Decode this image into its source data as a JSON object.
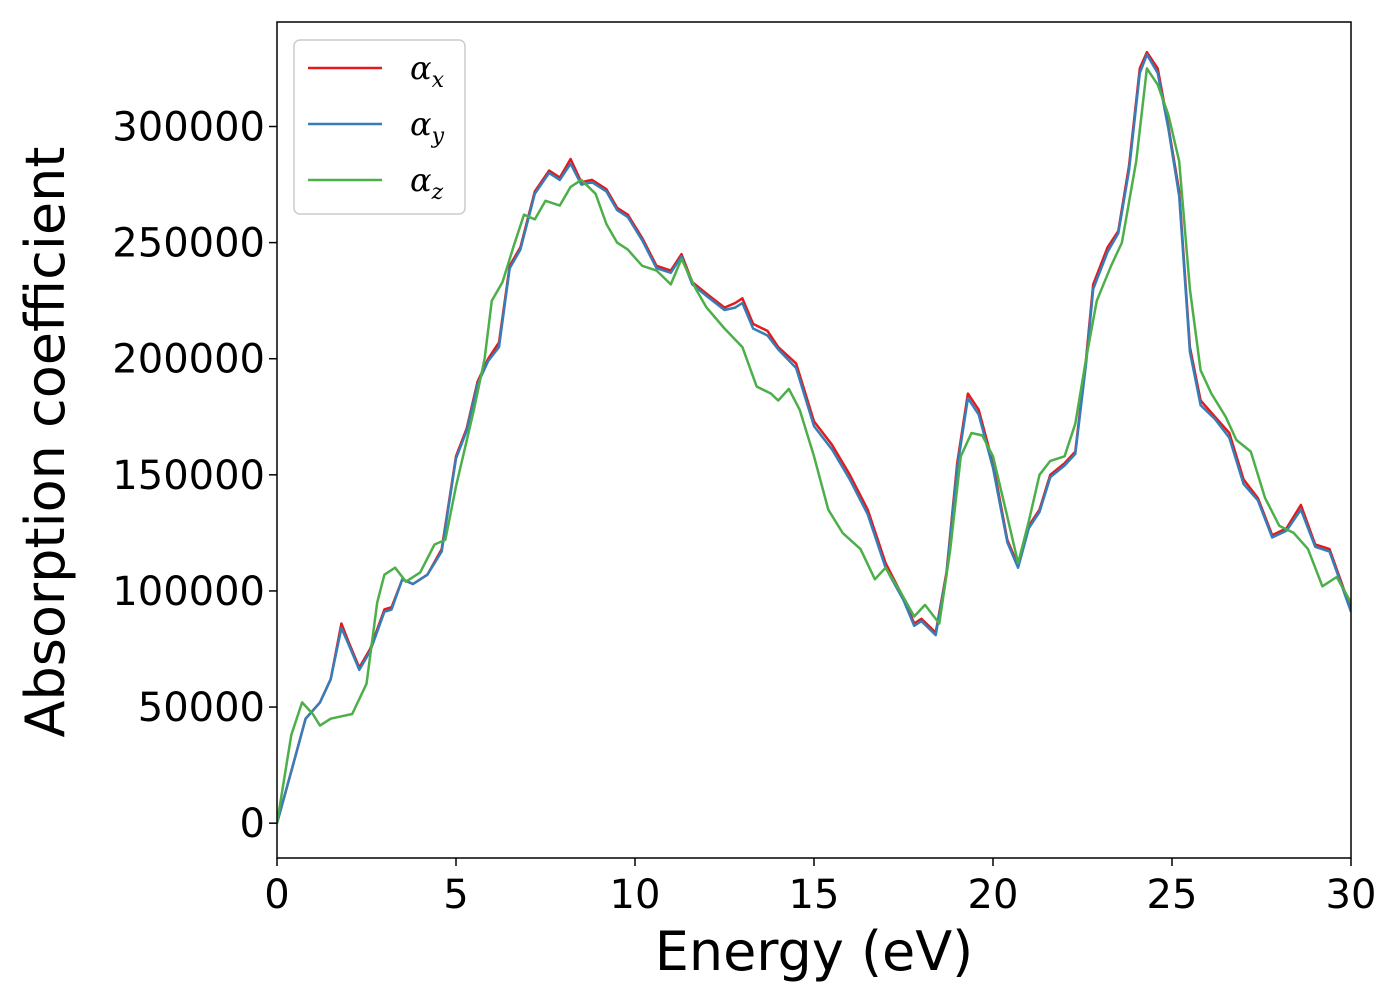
{
  "chart_data": {
    "type": "line",
    "xlabel": "Energy (eV)",
    "ylabel": "Absorption coefficient",
    "xlim": [
      0,
      30
    ],
    "ylim": [
      -15000,
      345000
    ],
    "xticks": [
      0,
      5,
      10,
      15,
      20,
      25,
      30
    ],
    "yticks": [
      0,
      50000,
      100000,
      150000,
      200000,
      250000,
      300000
    ],
    "grid": false,
    "legend_position": "top-left",
    "series": [
      {
        "name": "α",
        "sub": "x",
        "color": "#e41a1c",
        "points": [
          [
            0,
            0
          ],
          [
            0.5,
            28000
          ],
          [
            0.8,
            45000
          ],
          [
            1.2,
            52000
          ],
          [
            1.5,
            62000
          ],
          [
            1.8,
            86000
          ],
          [
            2.0,
            78000
          ],
          [
            2.3,
            67000
          ],
          [
            2.6,
            75000
          ],
          [
            3.0,
            92000
          ],
          [
            3.2,
            93000
          ],
          [
            3.5,
            105000
          ],
          [
            3.8,
            103000
          ],
          [
            4.2,
            107000
          ],
          [
            4.6,
            118000
          ],
          [
            5.0,
            158000
          ],
          [
            5.3,
            170000
          ],
          [
            5.6,
            190000
          ],
          [
            5.9,
            200000
          ],
          [
            6.2,
            207000
          ],
          [
            6.5,
            240000
          ],
          [
            6.8,
            248000
          ],
          [
            7.2,
            272000
          ],
          [
            7.6,
            281000
          ],
          [
            7.9,
            278000
          ],
          [
            8.2,
            286000
          ],
          [
            8.5,
            276000
          ],
          [
            8.8,
            277000
          ],
          [
            9.2,
            273000
          ],
          [
            9.5,
            265000
          ],
          [
            9.8,
            262000
          ],
          [
            10.2,
            252000
          ],
          [
            10.6,
            240000
          ],
          [
            11.0,
            238000
          ],
          [
            11.3,
            245000
          ],
          [
            11.6,
            233000
          ],
          [
            12.0,
            228000
          ],
          [
            12.5,
            222000
          ],
          [
            12.8,
            224000
          ],
          [
            13.0,
            226000
          ],
          [
            13.3,
            215000
          ],
          [
            13.7,
            212000
          ],
          [
            14.0,
            205000
          ],
          [
            14.5,
            198000
          ],
          [
            15.0,
            173000
          ],
          [
            15.5,
            163000
          ],
          [
            16.0,
            150000
          ],
          [
            16.5,
            135000
          ],
          [
            17.0,
            112000
          ],
          [
            17.5,
            97000
          ],
          [
            17.8,
            86000
          ],
          [
            18.0,
            88000
          ],
          [
            18.4,
            82000
          ],
          [
            18.7,
            108000
          ],
          [
            19.0,
            155000
          ],
          [
            19.3,
            185000
          ],
          [
            19.6,
            178000
          ],
          [
            20.0,
            155000
          ],
          [
            20.4,
            122000
          ],
          [
            20.7,
            111000
          ],
          [
            21.0,
            128000
          ],
          [
            21.3,
            135000
          ],
          [
            21.6,
            150000
          ],
          [
            22.0,
            155000
          ],
          [
            22.3,
            160000
          ],
          [
            22.6,
            200000
          ],
          [
            22.8,
            232000
          ],
          [
            23.2,
            248000
          ],
          [
            23.5,
            255000
          ],
          [
            23.8,
            283000
          ],
          [
            24.1,
            325000
          ],
          [
            24.3,
            332000
          ],
          [
            24.6,
            325000
          ],
          [
            24.9,
            300000
          ],
          [
            25.2,
            272000
          ],
          [
            25.5,
            205000
          ],
          [
            25.8,
            182000
          ],
          [
            26.2,
            175000
          ],
          [
            26.6,
            168000
          ],
          [
            27.0,
            148000
          ],
          [
            27.4,
            140000
          ],
          [
            27.8,
            124000
          ],
          [
            28.2,
            127000
          ],
          [
            28.6,
            137000
          ],
          [
            29.0,
            120000
          ],
          [
            29.4,
            118000
          ],
          [
            29.7,
            105000
          ],
          [
            30.0,
            92000
          ]
        ]
      },
      {
        "name": "α",
        "sub": "y",
        "color": "#377eb8",
        "points": [
          [
            0,
            0
          ],
          [
            0.5,
            28000
          ],
          [
            0.8,
            45000
          ],
          [
            1.2,
            52000
          ],
          [
            1.5,
            62000
          ],
          [
            1.8,
            84000
          ],
          [
            2.0,
            77000
          ],
          [
            2.3,
            66000
          ],
          [
            2.6,
            74000
          ],
          [
            3.0,
            91000
          ],
          [
            3.2,
            92000
          ],
          [
            3.5,
            105000
          ],
          [
            3.8,
            103000
          ],
          [
            4.2,
            107000
          ],
          [
            4.6,
            117000
          ],
          [
            5.0,
            157000
          ],
          [
            5.3,
            169000
          ],
          [
            5.6,
            189000
          ],
          [
            5.9,
            199000
          ],
          [
            6.2,
            205000
          ],
          [
            6.5,
            239000
          ],
          [
            6.8,
            247000
          ],
          [
            7.2,
            271000
          ],
          [
            7.6,
            280000
          ],
          [
            7.9,
            277000
          ],
          [
            8.2,
            284000
          ],
          [
            8.5,
            275000
          ],
          [
            8.8,
            276000
          ],
          [
            9.2,
            272000
          ],
          [
            9.5,
            264000
          ],
          [
            9.8,
            261000
          ],
          [
            10.2,
            251000
          ],
          [
            10.6,
            239000
          ],
          [
            11.0,
            237000
          ],
          [
            11.3,
            244000
          ],
          [
            11.6,
            232000
          ],
          [
            12.0,
            227000
          ],
          [
            12.5,
            221000
          ],
          [
            12.8,
            222000
          ],
          [
            13.0,
            224000
          ],
          [
            13.3,
            213000
          ],
          [
            13.7,
            210000
          ],
          [
            14.0,
            204000
          ],
          [
            14.5,
            196000
          ],
          [
            15.0,
            171000
          ],
          [
            15.5,
            161000
          ],
          [
            16.0,
            148000
          ],
          [
            16.5,
            133000
          ],
          [
            17.0,
            110000
          ],
          [
            17.5,
            96000
          ],
          [
            17.8,
            85000
          ],
          [
            18.0,
            87000
          ],
          [
            18.4,
            81000
          ],
          [
            18.7,
            107000
          ],
          [
            19.0,
            153000
          ],
          [
            19.3,
            183000
          ],
          [
            19.6,
            176000
          ],
          [
            20.0,
            153000
          ],
          [
            20.4,
            121000
          ],
          [
            20.7,
            110000
          ],
          [
            21.0,
            127000
          ],
          [
            21.3,
            134000
          ],
          [
            21.6,
            149000
          ],
          [
            22.0,
            154000
          ],
          [
            22.3,
            159000
          ],
          [
            22.6,
            198000
          ],
          [
            22.8,
            230000
          ],
          [
            23.2,
            246000
          ],
          [
            23.5,
            254000
          ],
          [
            23.8,
            281000
          ],
          [
            24.1,
            323000
          ],
          [
            24.3,
            331000
          ],
          [
            24.6,
            323000
          ],
          [
            24.9,
            299000
          ],
          [
            25.2,
            270000
          ],
          [
            25.5,
            203000
          ],
          [
            25.8,
            180000
          ],
          [
            26.2,
            174000
          ],
          [
            26.6,
            166000
          ],
          [
            27.0,
            146000
          ],
          [
            27.4,
            139000
          ],
          [
            27.8,
            123000
          ],
          [
            28.2,
            126000
          ],
          [
            28.6,
            135000
          ],
          [
            29.0,
            119000
          ],
          [
            29.4,
            117000
          ],
          [
            29.7,
            104000
          ],
          [
            30.0,
            91000
          ]
        ]
      },
      {
        "name": "α",
        "sub": "z",
        "color": "#4daf4a",
        "points": [
          [
            0,
            0
          ],
          [
            0.4,
            38000
          ],
          [
            0.7,
            52000
          ],
          [
            1.0,
            47000
          ],
          [
            1.2,
            42000
          ],
          [
            1.5,
            45000
          ],
          [
            1.8,
            46000
          ],
          [
            2.1,
            47000
          ],
          [
            2.5,
            60000
          ],
          [
            2.8,
            95000
          ],
          [
            3.0,
            107000
          ],
          [
            3.3,
            110000
          ],
          [
            3.6,
            104000
          ],
          [
            4.0,
            108000
          ],
          [
            4.4,
            120000
          ],
          [
            4.7,
            122000
          ],
          [
            5.0,
            145000
          ],
          [
            5.5,
            178000
          ],
          [
            5.8,
            200000
          ],
          [
            6.0,
            225000
          ],
          [
            6.3,
            233000
          ],
          [
            6.6,
            248000
          ],
          [
            6.9,
            262000
          ],
          [
            7.2,
            260000
          ],
          [
            7.5,
            268000
          ],
          [
            7.9,
            266000
          ],
          [
            8.2,
            274000
          ],
          [
            8.5,
            277000
          ],
          [
            8.9,
            271000
          ],
          [
            9.2,
            258000
          ],
          [
            9.5,
            250000
          ],
          [
            9.8,
            247000
          ],
          [
            10.2,
            240000
          ],
          [
            10.6,
            238000
          ],
          [
            11.0,
            232000
          ],
          [
            11.3,
            243000
          ],
          [
            11.7,
            230000
          ],
          [
            12.0,
            222000
          ],
          [
            12.5,
            213000
          ],
          [
            13.0,
            205000
          ],
          [
            13.4,
            188000
          ],
          [
            13.8,
            185000
          ],
          [
            14.0,
            182000
          ],
          [
            14.3,
            187000
          ],
          [
            14.6,
            178000
          ],
          [
            15.0,
            158000
          ],
          [
            15.4,
            135000
          ],
          [
            15.8,
            125000
          ],
          [
            16.3,
            118000
          ],
          [
            16.7,
            105000
          ],
          [
            17.0,
            110000
          ],
          [
            17.4,
            100000
          ],
          [
            17.8,
            89000
          ],
          [
            18.1,
            94000
          ],
          [
            18.5,
            86000
          ],
          [
            18.8,
            117000
          ],
          [
            19.1,
            158000
          ],
          [
            19.4,
            168000
          ],
          [
            19.7,
            167000
          ],
          [
            20.0,
            158000
          ],
          [
            20.4,
            132000
          ],
          [
            20.7,
            112000
          ],
          [
            21.0,
            130000
          ],
          [
            21.3,
            150000
          ],
          [
            21.6,
            156000
          ],
          [
            22.0,
            158000
          ],
          [
            22.3,
            172000
          ],
          [
            22.6,
            200000
          ],
          [
            22.9,
            225000
          ],
          [
            23.3,
            240000
          ],
          [
            23.6,
            250000
          ],
          [
            24.0,
            285000
          ],
          [
            24.3,
            325000
          ],
          [
            24.6,
            318000
          ],
          [
            24.9,
            305000
          ],
          [
            25.2,
            285000
          ],
          [
            25.5,
            230000
          ],
          [
            25.8,
            195000
          ],
          [
            26.1,
            185000
          ],
          [
            26.5,
            175000
          ],
          [
            26.8,
            165000
          ],
          [
            27.2,
            160000
          ],
          [
            27.6,
            140000
          ],
          [
            28.0,
            128000
          ],
          [
            28.4,
            125000
          ],
          [
            28.8,
            118000
          ],
          [
            29.2,
            102000
          ],
          [
            29.6,
            106000
          ],
          [
            30.0,
            95000
          ]
        ]
      }
    ]
  }
}
